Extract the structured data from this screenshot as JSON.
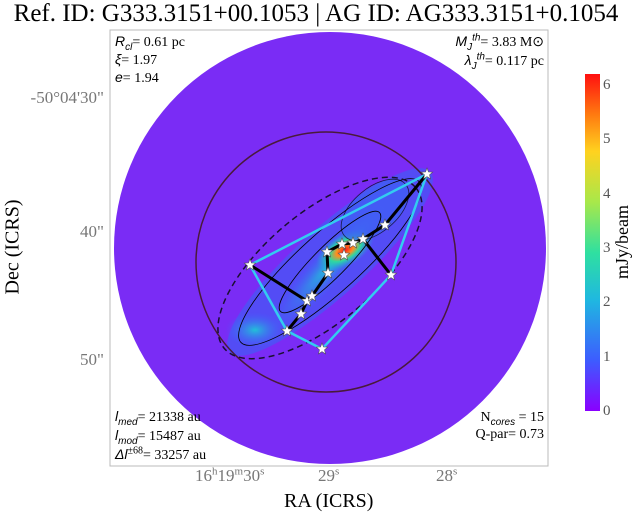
{
  "chart_data": {
    "type": "heatmap",
    "title": "Ref. ID: G333.3151+00.1053 | AG ID: AG333.3151+0.1054",
    "xlabel": "RA (ICRS)",
    "ylabel": "Dec (ICRS)",
    "x_ticks": [
      {
        "pre": "16",
        "h": "h",
        "m_pre": "19",
        "m": "m",
        "s_pre": "30",
        "s": "s"
      },
      {
        "s_pre": "29",
        "s": "s"
      },
      {
        "s_pre": "28",
        "s": "s"
      }
    ],
    "y_ticks": [
      "-50°04'30\"",
      "40\"",
      "50\""
    ],
    "colorbar": {
      "label": "mJy/beam",
      "range": [
        0,
        6.2
      ],
      "ticks": [
        "0",
        "1",
        "2",
        "3",
        "4",
        "5",
        "6"
      ],
      "colormap": [
        "#8a00ff",
        "#3d5cff",
        "#1fb8e0",
        "#2fe0a0",
        "#a8e84a",
        "#ffd21f",
        "#ff7a10",
        "#ff1010"
      ]
    },
    "annotations_left_top": {
      "rcl": "= 0.61 pc",
      "xi": "= 1.97",
      "e": "= 1.94"
    },
    "annotations_right_top": {
      "mj": "= 3.83 M⊙",
      "lj": "= 0.117 pc"
    },
    "annotations_left_bottom": {
      "lmed": "= 21338 au",
      "lmod": "= 15487 au",
      "dl": "= 33257 au"
    },
    "annotations_right_bottom": {
      "ncores": "N",
      "ncores_sub": "cores",
      "ncores_val": " = 15",
      "qpar": "Q-par= 0.73"
    },
    "colors": {
      "mst": "#000000",
      "hull": "#33ccf0",
      "background": "#7a2cf5",
      "cores": "#ffffff"
    }
  }
}
